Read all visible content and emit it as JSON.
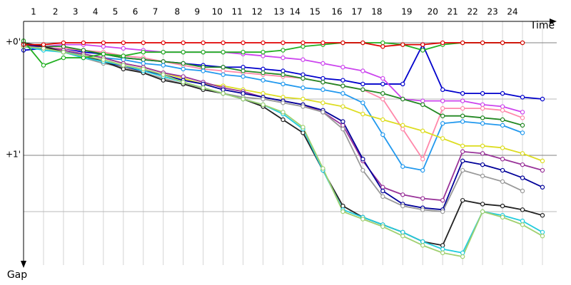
{
  "chart_data": {
    "type": "line",
    "x_label": "Time",
    "y_label": "Gap",
    "x": [
      0,
      1,
      2,
      3,
      4,
      5,
      6,
      7,
      8,
      9,
      10,
      11,
      12,
      13,
      14,
      15,
      16,
      17,
      18,
      19,
      20,
      21,
      22,
      23,
      24,
      25,
      26
    ],
    "xlim": [
      0,
      26
    ],
    "xticks": [
      {
        "value": 0.5,
        "label": "1"
      },
      {
        "value": 1.6,
        "label": "2"
      },
      {
        "value": 2.6,
        "label": "3"
      },
      {
        "value": 3.6,
        "label": "4"
      },
      {
        "value": 4.6,
        "label": "5"
      },
      {
        "value": 5.6,
        "label": "6"
      },
      {
        "value": 6.6,
        "label": "7"
      },
      {
        "value": 7.7,
        "label": "8"
      },
      {
        "value": 8.7,
        "label": "9"
      },
      {
        "value": 9.7,
        "label": "10"
      },
      {
        "value": 10.7,
        "label": "11"
      },
      {
        "value": 11.7,
        "label": "12"
      },
      {
        "value": 12.8,
        "label": "13"
      },
      {
        "value": 13.6,
        "label": "14"
      },
      {
        "value": 14.6,
        "label": "15"
      },
      {
        "value": 15.7,
        "label": "16"
      },
      {
        "value": 16.7,
        "label": "17"
      },
      {
        "value": 17.7,
        "label": "18"
      },
      {
        "value": 19.2,
        "label": "19"
      },
      {
        "value": 20.5,
        "label": "20"
      },
      {
        "value": 21.5,
        "label": "21"
      },
      {
        "value": 22.5,
        "label": "22"
      },
      {
        "value": 23.5,
        "label": "23"
      },
      {
        "value": 24.5,
        "label": "24"
      }
    ],
    "ylim": [
      -11.4,
      118.5
    ],
    "y_inverted": true,
    "yticks": [
      {
        "value": 0,
        "label": "+0'"
      },
      {
        "value": 60,
        "label": "+1'"
      }
    ],
    "minor_yticks": [
      30,
      90
    ],
    "grid": true,
    "series": [
      {
        "color": "#0000cc",
        "values": [
          4,
          3,
          3,
          5,
          6,
          8,
          9,
          10,
          11,
          12,
          13,
          13,
          14,
          15,
          17,
          19,
          20,
          22,
          22,
          22,
          1,
          25,
          27,
          27,
          27,
          29,
          30
        ]
      },
      {
        "color": "#cc44ee",
        "values": [
          1,
          2,
          1,
          1,
          2,
          3,
          4,
          5,
          5,
          5,
          5,
          6,
          7,
          8,
          9,
          11,
          13,
          15,
          19,
          30,
          31,
          31,
          31,
          33,
          34,
          37,
          null
        ]
      },
      {
        "color": "#ff88aa",
        "values": [
          2,
          3,
          3,
          4,
          5,
          7,
          8,
          10,
          12,
          14,
          15,
          16,
          17,
          18,
          19,
          21,
          23,
          25,
          30,
          46,
          62,
          35,
          35,
          35,
          36,
          40,
          null
        ]
      },
      {
        "color": "#228822",
        "values": [
          1,
          2,
          2,
          4,
          6,
          8,
          9,
          10,
          11,
          13,
          13,
          15,
          16,
          17,
          19,
          21,
          23,
          25,
          27,
          30,
          33,
          39,
          39,
          40,
          41,
          44,
          null
        ]
      },
      {
        "color": "#2299ee",
        "values": [
          2,
          3,
          5,
          6,
          8,
          9,
          11,
          12,
          14,
          15,
          17,
          18,
          20,
          22,
          24,
          25,
          27,
          32,
          49,
          66,
          68,
          43,
          42,
          43,
          44,
          48,
          null
        ]
      },
      {
        "color": "#dddd22",
        "values": [
          1,
          2,
          4,
          6,
          8,
          11,
          13,
          16,
          19,
          22,
          23,
          25,
          27,
          29,
          30,
          32,
          34,
          38,
          41,
          44,
          47,
          51,
          55,
          55,
          56,
          59,
          63
        ]
      },
      {
        "color": "#993399",
        "values": [
          2,
          2,
          4,
          6,
          8,
          11,
          13,
          16,
          18,
          21,
          24,
          26,
          29,
          31,
          33,
          37,
          44,
          63,
          77,
          81,
          83,
          84,
          58,
          59,
          62,
          65,
          68
        ]
      },
      {
        "color": "#000099",
        "values": [
          1,
          2,
          5,
          7,
          10,
          13,
          15,
          17,
          20,
          22,
          25,
          27,
          29,
          31,
          33,
          36,
          42,
          62,
          79,
          86,
          88,
          89,
          63,
          65,
          68,
          72,
          77
        ]
      },
      {
        "color": "#999999",
        "values": [
          2,
          3,
          5,
          8,
          11,
          13,
          16,
          19,
          22,
          24,
          27,
          29,
          30,
          32,
          34,
          37,
          46,
          68,
          82,
          87,
          89,
          90,
          68,
          71,
          74,
          79,
          null
        ]
      },
      {
        "color": "#222222",
        "values": [
          0,
          2,
          5,
          7,
          10,
          14,
          16,
          20,
          22,
          25,
          27,
          30,
          34,
          41,
          48,
          68,
          87,
          93,
          97,
          101,
          106,
          108,
          84,
          86,
          87,
          89,
          92
        ]
      },
      {
        "color": "#22ccdd",
        "values": [
          2,
          4,
          5,
          8,
          10,
          12,
          15,
          18,
          21,
          24,
          27,
          30,
          33,
          38,
          46,
          68,
          89,
          93,
          97,
          101,
          106,
          110,
          112,
          90,
          92,
          95,
          101
        ]
      },
      {
        "color": "#a0d070",
        "values": [
          2,
          3,
          5,
          7,
          9,
          12,
          14,
          17,
          21,
          24,
          27,
          30,
          33,
          37,
          45,
          67,
          90,
          94,
          98,
          103,
          108,
          112,
          114,
          90,
          93,
          97,
          103
        ]
      },
      {
        "color": "#22b022",
        "values": [
          -1,
          12,
          8,
          8,
          6,
          7,
          5,
          5,
          5,
          5,
          5,
          5,
          5,
          4,
          2,
          1,
          0,
          0,
          0,
          1,
          4,
          1,
          0,
          0,
          0,
          0,
          null
        ]
      },
      {
        "color": "#e00000",
        "values": [
          1,
          1,
          0,
          0,
          0,
          0,
          0,
          0,
          0,
          0,
          0,
          0,
          0,
          0,
          0,
          0,
          0,
          0,
          2,
          1,
          1,
          0,
          0,
          0,
          0,
          0,
          null
        ]
      }
    ]
  }
}
